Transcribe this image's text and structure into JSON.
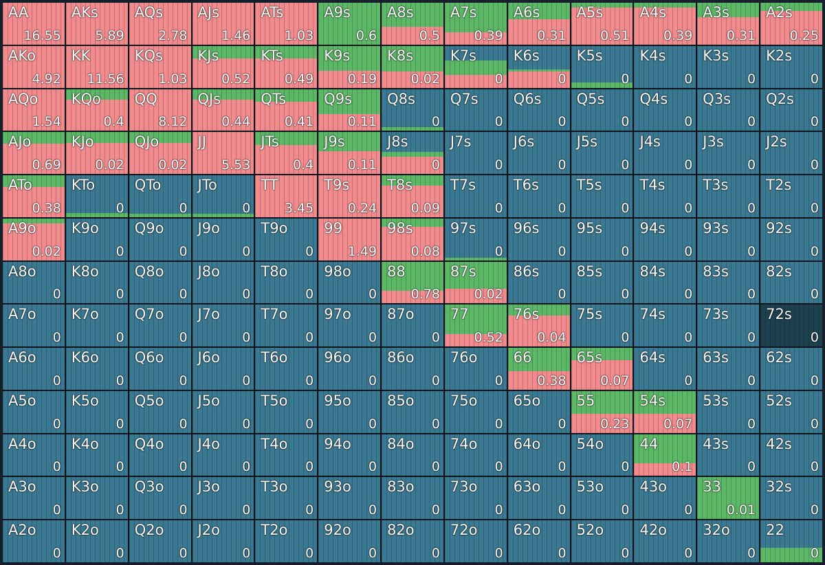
{
  "colors": {
    "fold": "#3b7891",
    "raise": "#f28b8e",
    "call": "#5cb866",
    "highlight": "#1e4150"
  },
  "selected_hand": "72s",
  "rows": [
    [
      {
        "hand": "AA",
        "value": "16.55",
        "raise": 1,
        "call": 0
      },
      {
        "hand": "AKs",
        "value": "5.89",
        "raise": 1,
        "call": 0
      },
      {
        "hand": "AQs",
        "value": "2.78",
        "raise": 1,
        "call": 0
      },
      {
        "hand": "AJs",
        "value": "1.46",
        "raise": 1,
        "call": 0
      },
      {
        "hand": "ATs",
        "value": "1.03",
        "raise": 1,
        "call": 0
      },
      {
        "hand": "A9s",
        "value": "0.6",
        "raise": 0,
        "call": 1
      },
      {
        "hand": "A8s",
        "value": "0.5",
        "raise": 0.42,
        "call": 0.58
      },
      {
        "hand": "A7s",
        "value": "0.39",
        "raise": 0.3,
        "call": 0.7
      },
      {
        "hand": "A6s",
        "value": "0.31",
        "raise": 0.6,
        "call": 0.4
      },
      {
        "hand": "A5s",
        "value": "0.51",
        "raise": 0.88,
        "call": 0.12
      },
      {
        "hand": "A4s",
        "value": "0.39",
        "raise": 0.88,
        "call": 0.12
      },
      {
        "hand": "A3s",
        "value": "0.31",
        "raise": 0.65,
        "call": 0.35
      },
      {
        "hand": "A2s",
        "value": "0.25",
        "raise": 0.8,
        "call": 0.2
      }
    ],
    [
      {
        "hand": "AKo",
        "value": "4.92",
        "raise": 1,
        "call": 0
      },
      {
        "hand": "KK",
        "value": "11.56",
        "raise": 1,
        "call": 0
      },
      {
        "hand": "KQs",
        "value": "1.03",
        "raise": 1,
        "call": 0
      },
      {
        "hand": "KJs",
        "value": "0.52",
        "raise": 0.7,
        "call": 0.3
      },
      {
        "hand": "KTs",
        "value": "0.49",
        "raise": 0.7,
        "call": 0.3
      },
      {
        "hand": "K9s",
        "value": "0.19",
        "raise": 0.4,
        "call": 0.6
      },
      {
        "hand": "K8s",
        "value": "0.02",
        "raise": 0.38,
        "call": 0.62
      },
      {
        "hand": "K7s",
        "value": "0",
        "raise": 0.3,
        "call": 0.35
      },
      {
        "hand": "K6s",
        "value": "0",
        "raise": 0.38,
        "call": 0.05
      },
      {
        "hand": "K5s",
        "value": "0",
        "raise": 0,
        "call": 0.12
      },
      {
        "hand": "K4s",
        "value": "0",
        "raise": 0,
        "call": 0
      },
      {
        "hand": "K3s",
        "value": "0",
        "raise": 0,
        "call": 0
      },
      {
        "hand": "K2s",
        "value": "0",
        "raise": 0,
        "call": 0
      }
    ],
    [
      {
        "hand": "AQo",
        "value": "1.54",
        "raise": 1,
        "call": 0
      },
      {
        "hand": "KQo",
        "value": "0.4",
        "raise": 0.75,
        "call": 0.25
      },
      {
        "hand": "QQ",
        "value": "8.12",
        "raise": 1,
        "call": 0
      },
      {
        "hand": "QJs",
        "value": "0.44",
        "raise": 0.75,
        "call": 0.25
      },
      {
        "hand": "QTs",
        "value": "0.41",
        "raise": 0.7,
        "call": 0.3
      },
      {
        "hand": "Q9s",
        "value": "0.11",
        "raise": 0.4,
        "call": 0.6
      },
      {
        "hand": "Q8s",
        "value": "0",
        "raise": 0,
        "call": 0.08
      },
      {
        "hand": "Q7s",
        "value": "0",
        "raise": 0,
        "call": 0
      },
      {
        "hand": "Q6s",
        "value": "0",
        "raise": 0,
        "call": 0
      },
      {
        "hand": "Q5s",
        "value": "0",
        "raise": 0,
        "call": 0
      },
      {
        "hand": "Q4s",
        "value": "0",
        "raise": 0,
        "call": 0
      },
      {
        "hand": "Q3s",
        "value": "0",
        "raise": 0,
        "call": 0
      },
      {
        "hand": "Q2s",
        "value": "0",
        "raise": 0,
        "call": 0
      }
    ],
    [
      {
        "hand": "AJo",
        "value": "0.69",
        "raise": 0.72,
        "call": 0.28
      },
      {
        "hand": "KJo",
        "value": "0.02",
        "raise": 0.75,
        "call": 0.25
      },
      {
        "hand": "QJo",
        "value": "0.02",
        "raise": 0.75,
        "call": 0.25
      },
      {
        "hand": "JJ",
        "value": "5.53",
        "raise": 1,
        "call": 0
      },
      {
        "hand": "JTs",
        "value": "0.4",
        "raise": 0.7,
        "call": 0.3
      },
      {
        "hand": "J9s",
        "value": "0.11",
        "raise": 0.55,
        "call": 0.45
      },
      {
        "hand": "J8s",
        "value": "0",
        "raise": 0.42,
        "call": 0.1
      },
      {
        "hand": "J7s",
        "value": "0",
        "raise": 0,
        "call": 0
      },
      {
        "hand": "J6s",
        "value": "0",
        "raise": 0,
        "call": 0
      },
      {
        "hand": "J5s",
        "value": "0",
        "raise": 0,
        "call": 0
      },
      {
        "hand": "J4s",
        "value": "0",
        "raise": 0,
        "call": 0
      },
      {
        "hand": "J3s",
        "value": "0",
        "raise": 0,
        "call": 0
      },
      {
        "hand": "J2s",
        "value": "0",
        "raise": 0,
        "call": 0
      }
    ],
    [
      {
        "hand": "ATo",
        "value": "0.38",
        "raise": 0.72,
        "call": 0.28
      },
      {
        "hand": "KTo",
        "value": "0",
        "raise": 0,
        "call": 0.1
      },
      {
        "hand": "QTo",
        "value": "0",
        "raise": 0,
        "call": 0.08
      },
      {
        "hand": "JTo",
        "value": "0",
        "raise": 0,
        "call": 0.08
      },
      {
        "hand": "TT",
        "value": "3.45",
        "raise": 1,
        "call": 0
      },
      {
        "hand": "T9s",
        "value": "0.24",
        "raise": 1,
        "call": 0
      },
      {
        "hand": "T8s",
        "value": "0.09",
        "raise": 0.75,
        "call": 0.25
      },
      {
        "hand": "T7s",
        "value": "0",
        "raise": 0,
        "call": 0
      },
      {
        "hand": "T6s",
        "value": "0",
        "raise": 0,
        "call": 0
      },
      {
        "hand": "T5s",
        "value": "0",
        "raise": 0,
        "call": 0
      },
      {
        "hand": "T4s",
        "value": "0",
        "raise": 0,
        "call": 0
      },
      {
        "hand": "T3s",
        "value": "0",
        "raise": 0,
        "call": 0
      },
      {
        "hand": "T2s",
        "value": "0",
        "raise": 0,
        "call": 0
      }
    ],
    [
      {
        "hand": "A9o",
        "value": "0.02",
        "raise": 0.88,
        "call": 0.12
      },
      {
        "hand": "K9o",
        "value": "0",
        "raise": 0,
        "call": 0
      },
      {
        "hand": "Q9o",
        "value": "0",
        "raise": 0,
        "call": 0
      },
      {
        "hand": "J9o",
        "value": "0",
        "raise": 0,
        "call": 0
      },
      {
        "hand": "T9o",
        "value": "0",
        "raise": 0,
        "call": 0
      },
      {
        "hand": "99",
        "value": "1.49",
        "raise": 1,
        "call": 0
      },
      {
        "hand": "98s",
        "value": "0.08",
        "raise": 0.8,
        "call": 0.2
      },
      {
        "hand": "97s",
        "value": "0",
        "raise": 0,
        "call": 0.06
      },
      {
        "hand": "96s",
        "value": "0",
        "raise": 0,
        "call": 0
      },
      {
        "hand": "95s",
        "value": "0",
        "raise": 0,
        "call": 0
      },
      {
        "hand": "94s",
        "value": "0",
        "raise": 0,
        "call": 0
      },
      {
        "hand": "93s",
        "value": "0",
        "raise": 0,
        "call": 0
      },
      {
        "hand": "92s",
        "value": "0",
        "raise": 0,
        "call": 0
      }
    ],
    [
      {
        "hand": "A8o",
        "value": "0",
        "raise": 0,
        "call": 0
      },
      {
        "hand": "K8o",
        "value": "0",
        "raise": 0,
        "call": 0
      },
      {
        "hand": "Q8o",
        "value": "0",
        "raise": 0,
        "call": 0
      },
      {
        "hand": "J8o",
        "value": "0",
        "raise": 0,
        "call": 0
      },
      {
        "hand": "T8o",
        "value": "0",
        "raise": 0,
        "call": 0
      },
      {
        "hand": "98o",
        "value": "0",
        "raise": 0,
        "call": 0
      },
      {
        "hand": "88",
        "value": "0.78",
        "raise": 0.3,
        "call": 0.7
      },
      {
        "hand": "87s",
        "value": "0.02",
        "raise": 0.35,
        "call": 0.65
      },
      {
        "hand": "86s",
        "value": "0",
        "raise": 0,
        "call": 0
      },
      {
        "hand": "85s",
        "value": "0",
        "raise": 0,
        "call": 0
      },
      {
        "hand": "84s",
        "value": "0",
        "raise": 0,
        "call": 0
      },
      {
        "hand": "83s",
        "value": "0",
        "raise": 0,
        "call": 0
      },
      {
        "hand": "82s",
        "value": "0",
        "raise": 0,
        "call": 0
      }
    ],
    [
      {
        "hand": "A7o",
        "value": "0",
        "raise": 0,
        "call": 0
      },
      {
        "hand": "K7o",
        "value": "0",
        "raise": 0,
        "call": 0
      },
      {
        "hand": "Q7o",
        "value": "0",
        "raise": 0,
        "call": 0
      },
      {
        "hand": "J7o",
        "value": "0",
        "raise": 0,
        "call": 0
      },
      {
        "hand": "T7o",
        "value": "0",
        "raise": 0,
        "call": 0
      },
      {
        "hand": "97o",
        "value": "0",
        "raise": 0,
        "call": 0
      },
      {
        "hand": "87o",
        "value": "0",
        "raise": 0,
        "call": 0
      },
      {
        "hand": "77",
        "value": "0.52",
        "raise": 0.3,
        "call": 0.7
      },
      {
        "hand": "76s",
        "value": "0.04",
        "raise": 0.75,
        "call": 0.25
      },
      {
        "hand": "75s",
        "value": "0",
        "raise": 0,
        "call": 0
      },
      {
        "hand": "74s",
        "value": "0",
        "raise": 0,
        "call": 0
      },
      {
        "hand": "73s",
        "value": "0",
        "raise": 0,
        "call": 0
      },
      {
        "hand": "72s",
        "value": "0",
        "raise": 0,
        "call": 0
      }
    ],
    [
      {
        "hand": "A6o",
        "value": "0",
        "raise": 0,
        "call": 0
      },
      {
        "hand": "K6o",
        "value": "0",
        "raise": 0,
        "call": 0
      },
      {
        "hand": "Q6o",
        "value": "0",
        "raise": 0,
        "call": 0
      },
      {
        "hand": "J6o",
        "value": "0",
        "raise": 0,
        "call": 0
      },
      {
        "hand": "T6o",
        "value": "0",
        "raise": 0,
        "call": 0
      },
      {
        "hand": "96o",
        "value": "0",
        "raise": 0,
        "call": 0
      },
      {
        "hand": "86o",
        "value": "0",
        "raise": 0,
        "call": 0
      },
      {
        "hand": "76o",
        "value": "0",
        "raise": 0,
        "call": 0
      },
      {
        "hand": "66",
        "value": "0.38",
        "raise": 0.45,
        "call": 0.55
      },
      {
        "hand": "65s",
        "value": "0.07",
        "raise": 0.7,
        "call": 0.3
      },
      {
        "hand": "64s",
        "value": "0",
        "raise": 0,
        "call": 0
      },
      {
        "hand": "63s",
        "value": "0",
        "raise": 0,
        "call": 0
      },
      {
        "hand": "62s",
        "value": "0",
        "raise": 0,
        "call": 0
      }
    ],
    [
      {
        "hand": "A5o",
        "value": "0",
        "raise": 0,
        "call": 0
      },
      {
        "hand": "K5o",
        "value": "0",
        "raise": 0,
        "call": 0
      },
      {
        "hand": "Q5o",
        "value": "0",
        "raise": 0,
        "call": 0
      },
      {
        "hand": "J5o",
        "value": "0",
        "raise": 0,
        "call": 0
      },
      {
        "hand": "T5o",
        "value": "0",
        "raise": 0,
        "call": 0
      },
      {
        "hand": "95o",
        "value": "0",
        "raise": 0,
        "call": 0
      },
      {
        "hand": "85o",
        "value": "0",
        "raise": 0,
        "call": 0
      },
      {
        "hand": "75o",
        "value": "0",
        "raise": 0,
        "call": 0
      },
      {
        "hand": "65o",
        "value": "0",
        "raise": 0,
        "call": 0
      },
      {
        "hand": "55",
        "value": "0.23",
        "raise": 0.45,
        "call": 0.55
      },
      {
        "hand": "54s",
        "value": "0.07",
        "raise": 0.45,
        "call": 0.55
      },
      {
        "hand": "53s",
        "value": "0",
        "raise": 0,
        "call": 0
      },
      {
        "hand": "52s",
        "value": "0",
        "raise": 0,
        "call": 0
      }
    ],
    [
      {
        "hand": "A4o",
        "value": "0",
        "raise": 0,
        "call": 0
      },
      {
        "hand": "K4o",
        "value": "0",
        "raise": 0,
        "call": 0
      },
      {
        "hand": "Q4o",
        "value": "0",
        "raise": 0,
        "call": 0
      },
      {
        "hand": "J4o",
        "value": "0",
        "raise": 0,
        "call": 0
      },
      {
        "hand": "T4o",
        "value": "0",
        "raise": 0,
        "call": 0
      },
      {
        "hand": "94o",
        "value": "0",
        "raise": 0,
        "call": 0
      },
      {
        "hand": "84o",
        "value": "0",
        "raise": 0,
        "call": 0
      },
      {
        "hand": "74o",
        "value": "0",
        "raise": 0,
        "call": 0
      },
      {
        "hand": "64o",
        "value": "0",
        "raise": 0,
        "call": 0
      },
      {
        "hand": "54o",
        "value": "0",
        "raise": 0,
        "call": 0
      },
      {
        "hand": "44",
        "value": "0.1",
        "raise": 0.3,
        "call": 0.7
      },
      {
        "hand": "43s",
        "value": "0",
        "raise": 0,
        "call": 0
      },
      {
        "hand": "42s",
        "value": "0",
        "raise": 0,
        "call": 0
      }
    ],
    [
      {
        "hand": "A3o",
        "value": "0",
        "raise": 0,
        "call": 0
      },
      {
        "hand": "K3o",
        "value": "0",
        "raise": 0,
        "call": 0
      },
      {
        "hand": "Q3o",
        "value": "0",
        "raise": 0,
        "call": 0
      },
      {
        "hand": "J3o",
        "value": "0",
        "raise": 0,
        "call": 0
      },
      {
        "hand": "T3o",
        "value": "0",
        "raise": 0,
        "call": 0
      },
      {
        "hand": "93o",
        "value": "0",
        "raise": 0,
        "call": 0
      },
      {
        "hand": "83o",
        "value": "0",
        "raise": 0,
        "call": 0
      },
      {
        "hand": "73o",
        "value": "0",
        "raise": 0,
        "call": 0
      },
      {
        "hand": "63o",
        "value": "0",
        "raise": 0,
        "call": 0
      },
      {
        "hand": "53o",
        "value": "0",
        "raise": 0,
        "call": 0
      },
      {
        "hand": "43o",
        "value": "0",
        "raise": 0,
        "call": 0
      },
      {
        "hand": "33",
        "value": "0.01",
        "raise": 0,
        "call": 1
      },
      {
        "hand": "32s",
        "value": "0",
        "raise": 0,
        "call": 0
      }
    ],
    [
      {
        "hand": "A2o",
        "value": "0",
        "raise": 0,
        "call": 0
      },
      {
        "hand": "K2o",
        "value": "0",
        "raise": 0,
        "call": 0
      },
      {
        "hand": "Q2o",
        "value": "0",
        "raise": 0,
        "call": 0
      },
      {
        "hand": "J2o",
        "value": "0",
        "raise": 0,
        "call": 0
      },
      {
        "hand": "T2o",
        "value": "0",
        "raise": 0,
        "call": 0
      },
      {
        "hand": "92o",
        "value": "0",
        "raise": 0,
        "call": 0
      },
      {
        "hand": "82o",
        "value": "0",
        "raise": 0,
        "call": 0
      },
      {
        "hand": "72o",
        "value": "0",
        "raise": 0,
        "call": 0
      },
      {
        "hand": "62o",
        "value": "0",
        "raise": 0,
        "call": 0
      },
      {
        "hand": "52o",
        "value": "0",
        "raise": 0,
        "call": 0
      },
      {
        "hand": "42o",
        "value": "0",
        "raise": 0,
        "call": 0
      },
      {
        "hand": "32o",
        "value": "0",
        "raise": 0,
        "call": 0
      },
      {
        "hand": "22",
        "value": "0",
        "raise": 0,
        "call": 0.35
      }
    ]
  ]
}
